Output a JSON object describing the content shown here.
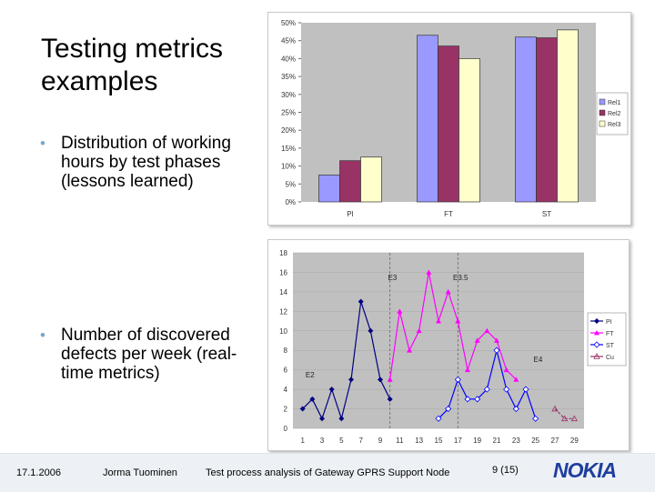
{
  "slide": {
    "title": "Testing metrics examples",
    "bullets": [
      "Distribution of working hours by test phases (lessons learned)",
      "Number of discovered defects per week (real-time metrics)"
    ]
  },
  "footer": {
    "date": "17.1.2006",
    "author": "Jorma Tuominen",
    "subject": "Test process analysis of Gateway GPRS Support Node",
    "page": "9 (15)",
    "logo": "NOKIA"
  },
  "colors": {
    "rel1": "#9999ff",
    "rel2": "#993366",
    "rel3": "#ffffcc",
    "pi": "#000080",
    "ft": "#ff00ff",
    "st": "#0000ff",
    "cu": "#993366"
  },
  "chart_data": [
    {
      "type": "bar",
      "title": "",
      "categories": [
        "PI",
        "FT",
        "ST"
      ],
      "series": [
        {
          "name": "Rel1",
          "values": [
            7.5,
            46.5,
            46
          ]
        },
        {
          "name": "Rel2",
          "values": [
            11.5,
            43.5,
            45.8
          ]
        },
        {
          "name": "Rel3",
          "values": [
            12.5,
            40,
            48
          ]
        }
      ],
      "yticks": [
        "0%",
        "5%",
        "10%",
        "15%",
        "20%",
        "25%",
        "30%",
        "35%",
        "40%",
        "45%",
        "50%"
      ],
      "ylim": [
        0,
        50
      ],
      "xlabel": "",
      "ylabel": "",
      "legend": "right"
    },
    {
      "type": "line",
      "title": "",
      "x_ticks": [
        "1",
        "3",
        "5",
        "7",
        "9",
        "11",
        "13",
        "15",
        "17",
        "19",
        "21",
        "23",
        "25",
        "27",
        "29"
      ],
      "yticks": [
        "0",
        "2",
        "4",
        "6",
        "8",
        "10",
        "12",
        "14",
        "16",
        "18"
      ],
      "xlim": [
        0,
        30
      ],
      "ylim": [
        0,
        18
      ],
      "series": [
        {
          "name": "PI",
          "marker": "diamond",
          "points": [
            [
              1,
              2
            ],
            [
              2,
              3
            ],
            [
              3,
              1
            ],
            [
              4,
              4
            ],
            [
              5,
              1
            ],
            [
              6,
              5
            ],
            [
              7,
              13
            ],
            [
              8,
              10
            ],
            [
              9,
              5
            ],
            [
              10,
              3
            ]
          ]
        },
        {
          "name": "FT",
          "marker": "triangle",
          "points": [
            [
              10,
              5
            ],
            [
              11,
              12
            ],
            [
              12,
              8
            ],
            [
              13,
              10
            ],
            [
              14,
              16
            ],
            [
              15,
              11
            ],
            [
              16,
              14
            ],
            [
              17,
              11
            ],
            [
              18,
              6
            ],
            [
              19,
              9
            ],
            [
              20,
              10
            ],
            [
              21,
              9
            ],
            [
              22,
              6
            ],
            [
              23,
              5
            ]
          ]
        },
        {
          "name": "ST",
          "marker": "diamond-open",
          "points": [
            [
              15,
              1
            ],
            [
              16,
              2
            ],
            [
              17,
              5
            ],
            [
              18,
              3
            ],
            [
              19,
              3
            ],
            [
              20,
              4
            ],
            [
              21,
              8
            ],
            [
              22,
              4
            ],
            [
              23,
              2
            ],
            [
              24,
              4
            ],
            [
              25,
              1
            ]
          ]
        },
        {
          "name": "Cu",
          "marker": "triangle-open",
          "points": [
            [
              27,
              2
            ],
            [
              28,
              1
            ],
            [
              29,
              1
            ]
          ]
        }
      ],
      "annotations": [
        {
          "label": "E2",
          "x": 1.3,
          "y": 5.2
        },
        {
          "label": "E3",
          "x": 9.8,
          "y": 15.2
        },
        {
          "label": "E3.5",
          "x": 16.5,
          "y": 15.2
        },
        {
          "label": "E4",
          "x": 24.8,
          "y": 6.8
        }
      ],
      "event_lines": [
        10,
        17
      ],
      "legend": "right"
    }
  ]
}
